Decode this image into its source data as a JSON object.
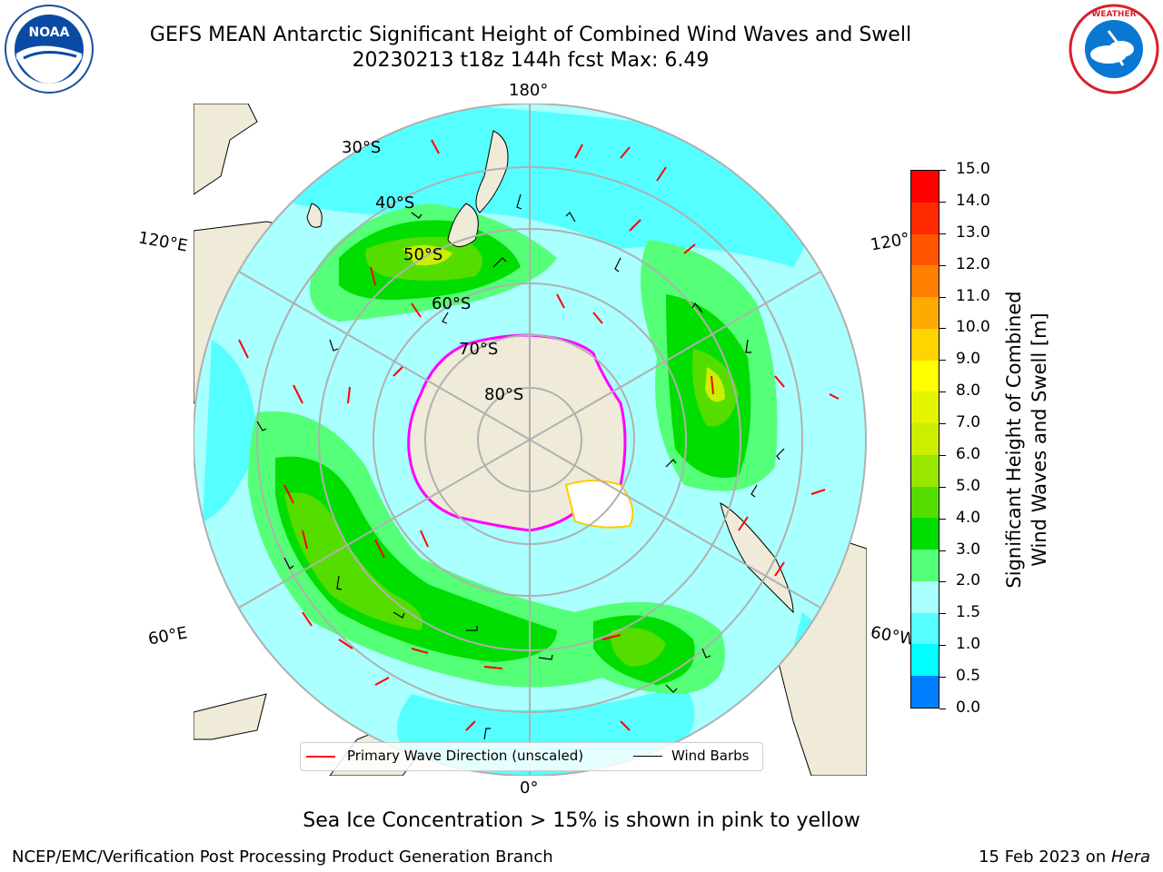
{
  "title": {
    "line1": "GEFS MEAN Antarctic Significant Height of Combined Wind Waves and Swell",
    "line2": "20230213 t18z 144h fcst   Max: 6.49"
  },
  "logos": {
    "left": "NOAA",
    "right": "NATIONAL WEATHER SERVICE"
  },
  "map": {
    "lon_labels": {
      "top": "180°",
      "bottom": "0°",
      "upper_left": "120°E",
      "lower_left": "60°E",
      "upper_right": "120°",
      "lower_right": "60°W"
    },
    "lat_labels": [
      "30°S",
      "40°S",
      "50°S",
      "60°S",
      "70°S",
      "80°S"
    ]
  },
  "legend": {
    "wave_label": "Primary Wave Direction (unscaled)",
    "barb_label": "Wind Barbs"
  },
  "colorbar": {
    "label_line1": "Significant Height of Combined",
    "label_line2": "Wind Waves and Swell [m]",
    "ticks": [
      "15.0",
      "14.0",
      "13.0",
      "12.0",
      "11.0",
      "10.0",
      "9.0",
      "8.0",
      "7.0",
      "6.0",
      "5.0",
      "4.0",
      "3.0",
      "2.0",
      "1.5",
      "1.0",
      "0.5",
      "0.0"
    ],
    "colors": [
      "#ff0000",
      "#ff2a00",
      "#ff5500",
      "#ff7f00",
      "#ffaa00",
      "#ffd400",
      "#ffff00",
      "#e5f500",
      "#ccee00",
      "#99e600",
      "#55dd00",
      "#00dd00",
      "#55ff77",
      "#aaffff",
      "#55ffff",
      "#00ffff",
      "#0080ff",
      "#0000ff"
    ]
  },
  "note": "Sea Ice Concentration > 15% is shown in pink to yellow",
  "footer": {
    "credit": "NCEP/EMC/Verification Post Processing Product Generation Branch",
    "date_prefix": "15 Feb 2023 on ",
    "date_machine": "Hera"
  }
}
